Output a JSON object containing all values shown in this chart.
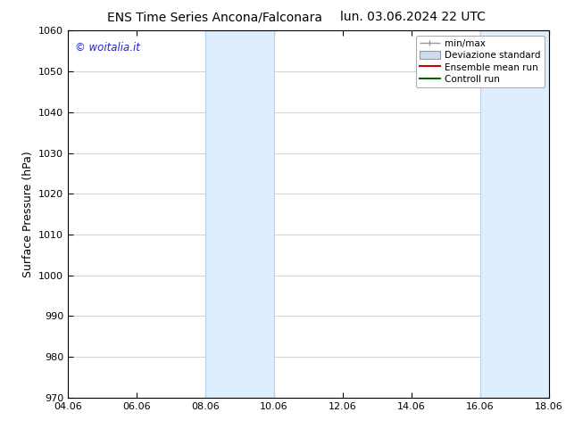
{
  "title_left": "ENS Time Series Ancona/Falconara",
  "title_right": "lun. 03.06.2024 22 UTC",
  "ylabel": "Surface Pressure (hPa)",
  "ylim": [
    970,
    1060
  ],
  "yticks": [
    970,
    980,
    990,
    1000,
    1010,
    1020,
    1030,
    1040,
    1050,
    1060
  ],
  "xlim_start": 0,
  "xlim_end": 14,
  "xtick_labels": [
    "04.06",
    "06.06",
    "08.06",
    "10.06",
    "12.06",
    "14.06",
    "16.06",
    "18.06"
  ],
  "xtick_positions": [
    0,
    2,
    4,
    6,
    8,
    10,
    12,
    14
  ],
  "shaded_bands": [
    {
      "x_start": 4.0,
      "x_end": 6.0
    },
    {
      "x_start": 12.0,
      "x_end": 14.0
    }
  ],
  "shaded_color": "#ddeeff",
  "shaded_edge_color": "#b8d0e8",
  "watermark_text": "© woitalia.it",
  "watermark_color": "#2222cc",
  "legend_entries": [
    {
      "label": "min/max",
      "color": "#999999",
      "lw": 1.0,
      "style": "minmax"
    },
    {
      "label": "Deviazione standard",
      "color": "#ccddee",
      "lw": 8,
      "style": "band"
    },
    {
      "label": "Ensemble mean run",
      "color": "#cc0000",
      "lw": 1.5,
      "style": "line"
    },
    {
      "label": "Controll run",
      "color": "#006600",
      "lw": 1.5,
      "style": "line"
    }
  ],
  "background_color": "#ffffff",
  "grid_color": "#cccccc",
  "title_fontsize": 10,
  "tick_fontsize": 8,
  "ylabel_fontsize": 9,
  "legend_fontsize": 7.5,
  "watermark_fontsize": 8.5
}
